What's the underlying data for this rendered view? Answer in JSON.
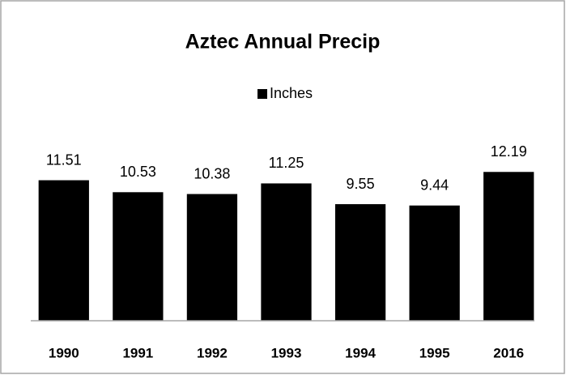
{
  "chart_data": {
    "type": "bar",
    "title": "Aztec Annual Precip",
    "categories": [
      "1990",
      "1991",
      "1992",
      "1993",
      "1994",
      "1995",
      "2016"
    ],
    "series": [
      {
        "name": "Inches",
        "color": "#000000",
        "values": [
          11.51,
          10.53,
          10.38,
          11.25,
          9.55,
          9.44,
          12.19
        ]
      }
    ],
    "ylim": [
      0,
      14
    ],
    "legend": "top"
  }
}
